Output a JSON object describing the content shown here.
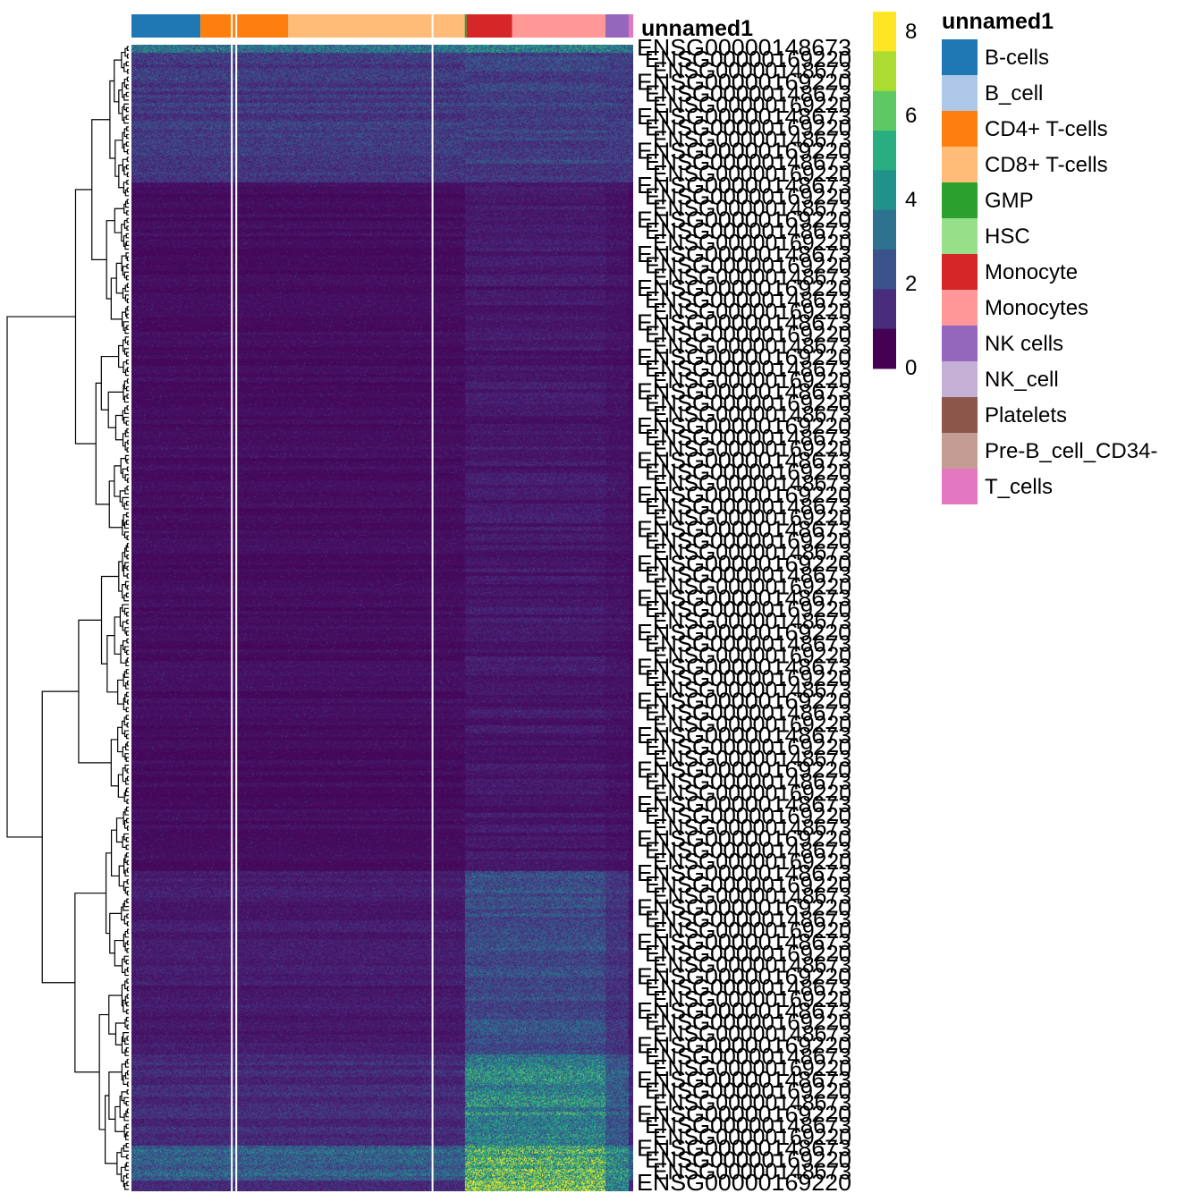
{
  "chart_data": {
    "type": "heatmap",
    "title": "",
    "annotation_name": "unnamed1",
    "n_rows": 300,
    "n_cols": 560,
    "row_dendrogram": true,
    "grid": false,
    "colorbar": {
      "ticks": [
        "8",
        "6",
        "4",
        "2",
        "0"
      ],
      "tick_values": [
        8,
        6,
        4,
        2,
        0
      ],
      "range": [
        0,
        8.5
      ],
      "colors": [
        "#fde725",
        "#addc30",
        "#5ec962",
        "#28ae80",
        "#21918c",
        "#2c728e",
        "#3b528b",
        "#472d7b",
        "#440154"
      ]
    },
    "column_groups": [
      {
        "name": "B-cells",
        "color": "#1f77b4",
        "start": 0,
        "end": 77
      },
      {
        "name": "CD4+ T-cells",
        "color": "#ff7f0e",
        "start": 77,
        "end": 175
      },
      {
        "name": "CD8+ T-cells",
        "color": "#ffbb78",
        "start": 175,
        "end": 372
      },
      {
        "name": "GMP",
        "color": "#2ca02c",
        "start": 372,
        "end": 374
      },
      {
        "name": "Monocyte",
        "color": "#d62728",
        "start": 374,
        "end": 425
      },
      {
        "name": "Monocytes",
        "color": "#ff9896",
        "start": 425,
        "end": 529
      },
      {
        "name": "NK cells",
        "color": "#9467bd",
        "start": 529,
        "end": 555
      },
      {
        "name": "T_cells",
        "color": "#e377c2",
        "start": 555,
        "end": 560
      }
    ],
    "column_gaps": [
      112,
      117,
      336
    ],
    "row_labels": [
      "ENSG00000148673",
      "ENSG00000169220"
    ]
  },
  "legend": {
    "title": "unnamed1",
    "items": [
      {
        "label": "B-cells",
        "color": "#1f77b4"
      },
      {
        "label": "B_cell",
        "color": "#aec7e8"
      },
      {
        "label": "CD4+ T-cells",
        "color": "#ff7f0e"
      },
      {
        "label": "CD8+ T-cells",
        "color": "#ffbb78"
      },
      {
        "label": "GMP",
        "color": "#2ca02c"
      },
      {
        "label": "HSC",
        "color": "#98df8a"
      },
      {
        "label": "Monocyte",
        "color": "#d62728"
      },
      {
        "label": "Monocytes",
        "color": "#ff9896"
      },
      {
        "label": "NK cells",
        "color": "#9467bd"
      },
      {
        "label": "NK_cell",
        "color": "#c5b0d5"
      },
      {
        "label": "Platelets",
        "color": "#8c564b"
      },
      {
        "label": "Pre-B_cell_CD34-",
        "color": "#c49c94"
      },
      {
        "label": "T_cells",
        "color": "#e377c2"
      }
    ]
  }
}
